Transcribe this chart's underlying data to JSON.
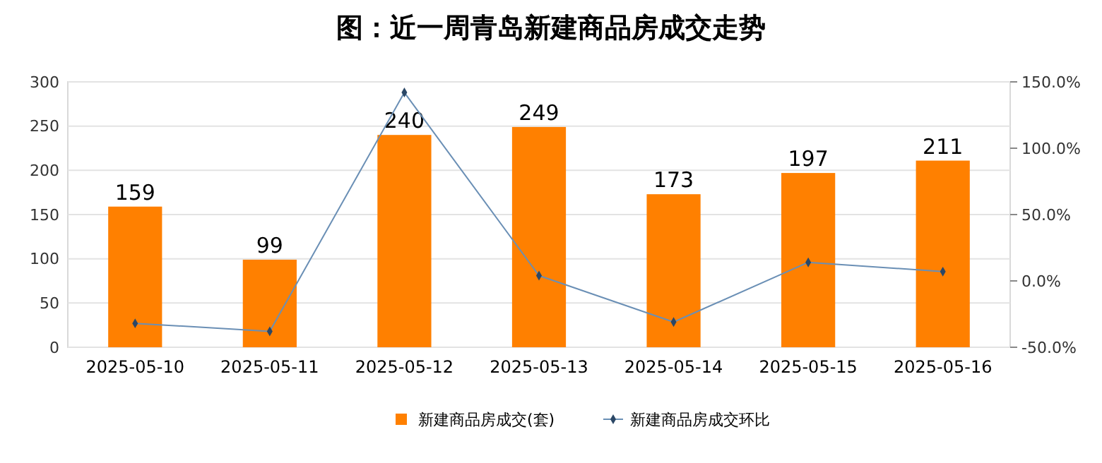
{
  "chart_data": {
    "type": "bar",
    "title": "图：近一周青岛新建商品房成交走势",
    "categories": [
      "2025-05-10",
      "2025-05-11",
      "2025-05-12",
      "2025-05-13",
      "2025-05-14",
      "2025-05-15",
      "2025-05-16"
    ],
    "series": [
      {
        "name": "新建商品房成交(套)",
        "color": "#ff8000",
        "values": [
          159,
          99,
          240,
          249,
          173,
          197,
          211
        ],
        "data_labels": true
      },
      {
        "name": "新建商品房成交环比",
        "type": "line",
        "axis": "y2",
        "color": "#6a8fb5",
        "marker": "diamond",
        "values": [
          -32,
          -38,
          142,
          4,
          -31,
          14,
          7
        ]
      }
    ],
    "ylim": [
      0,
      300
    ],
    "yticks": [
      0,
      50,
      100,
      150,
      200,
      250,
      300
    ],
    "y2lim": [
      -50,
      150
    ],
    "y2ticks": [
      {
        "value": -50,
        "label": "-50.0%"
      },
      {
        "value": 0,
        "label": "0.0%"
      },
      {
        "value": 50,
        "label": "50.0%"
      },
      {
        "value": 100,
        "label": "100.0%"
      },
      {
        "value": 150,
        "label": "150.0%"
      }
    ],
    "grid": "y",
    "legend": "bottom"
  }
}
